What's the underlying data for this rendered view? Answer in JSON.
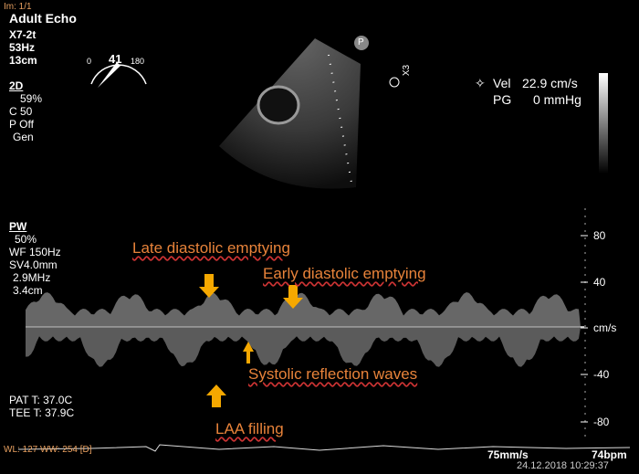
{
  "header": {
    "image_index": "Im: 1/1",
    "preset": "Adult Echo",
    "probe": "X7-2t",
    "frame_rate": "53Hz",
    "depth": "13cm"
  },
  "mode_2d": {
    "label": "2D",
    "gain": "59%",
    "compression": "C 50",
    "power": "P Off",
    "freq": "Gen"
  },
  "dial": {
    "min": "0",
    "angle": "41",
    "max": "180"
  },
  "icons": {
    "p": "P",
    "x3": "X3"
  },
  "measurement": {
    "vel_label": "Vel",
    "vel_value": "22.9 cm/s",
    "pg_label": "PG",
    "pg_value": "0 mmHg"
  },
  "mode_pw": {
    "label": "PW",
    "gain": "50%",
    "wall_filter": "WF 150Hz",
    "sample_volume": "SV4.0mm",
    "freq": "2.9MHz",
    "depth": "3.4cm"
  },
  "velocity_scale": {
    "ticks": [
      "80",
      "40",
      "cm/s",
      "-40",
      "-80"
    ]
  },
  "annotations": {
    "late": "Late diastolic emptying",
    "early": "Early diastolic emptying",
    "systolic": "Systolic reflection waves",
    "filling": "LAA filling"
  },
  "temperatures": {
    "pat": "PAT T: 37.0C",
    "tee": "TEE T: 37.9C"
  },
  "footer": {
    "window": "WL: 127 WW: 254 [D]",
    "sweep": "75mm/s",
    "heart_rate": "74bpm",
    "timestamp": "24.12.2018 10:29:37"
  }
}
